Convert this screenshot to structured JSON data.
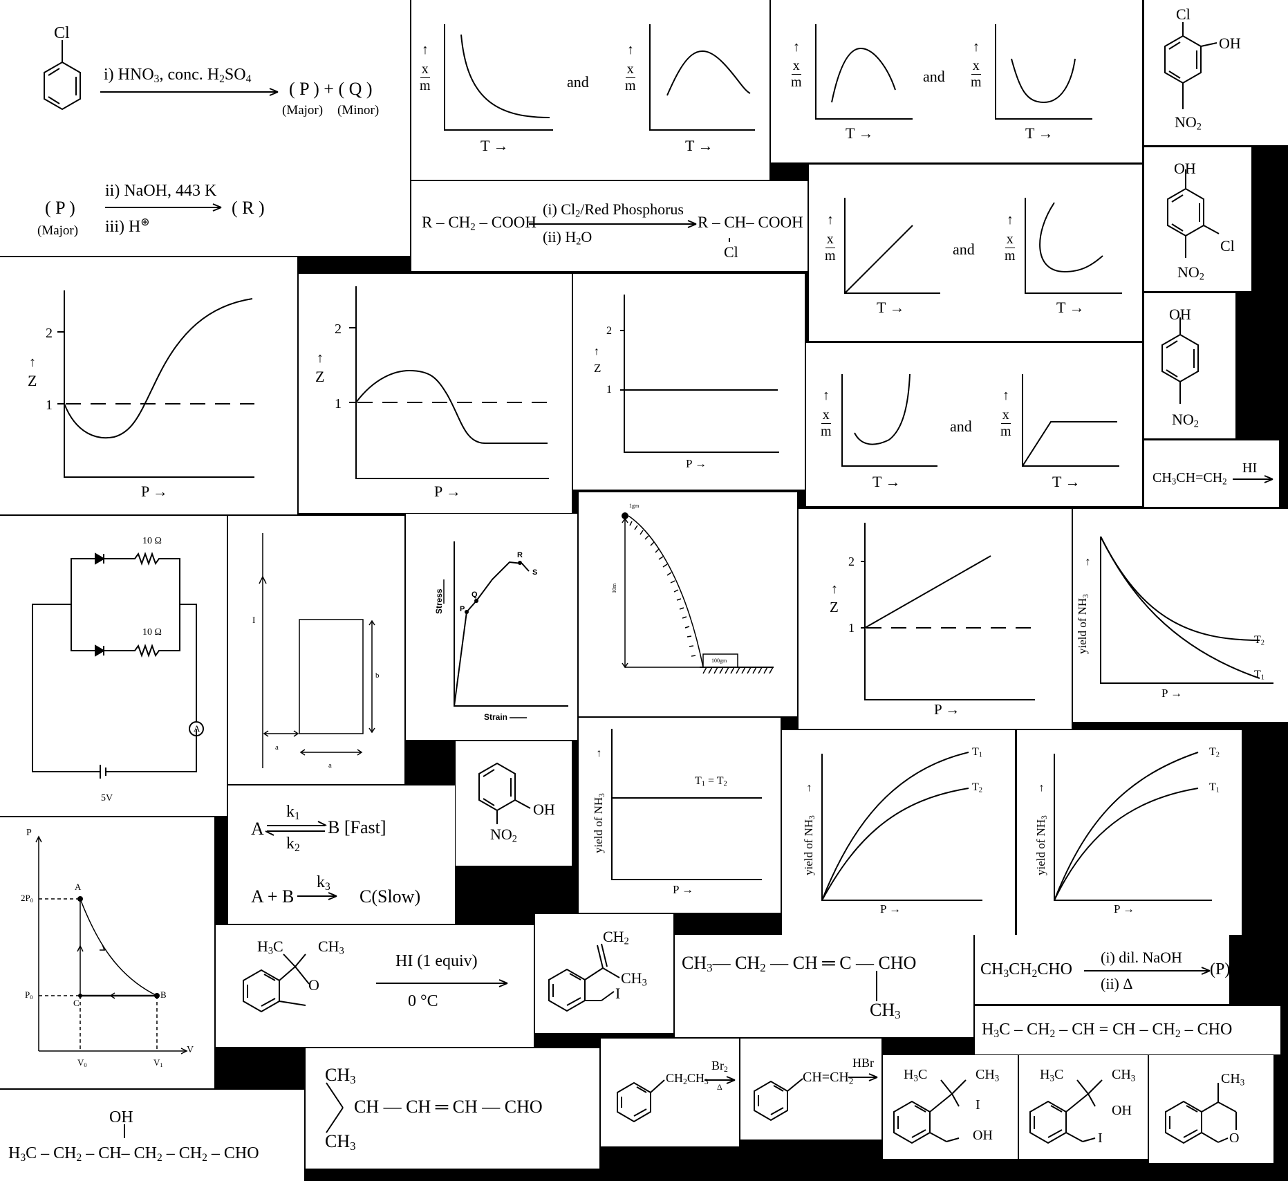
{
  "nitration": {
    "cl": "Cl",
    "reagent1": "i) HNO<sub>3</sub>, conc. H<sub>2</sub>SO<sub>4</sub>",
    "products": "( P ) + ( Q )",
    "major": "(Major)",
    "minor": "(Minor)",
    "p": "( P )",
    "p_major": "(Major)",
    "reagent2": "ii) NaOH, 443 K",
    "reagent3": "iii) H<sup>⊕</sup>",
    "r": "( R )"
  },
  "hvz": {
    "left": "R – CH<sub>2</sub> – COOH",
    "top": "(i) Cl<sub>2</sub>/Red Phosphorus",
    "bottom": "(ii) H<sub>2</sub>O",
    "right": "R – CH– COOH",
    "cl": "Cl"
  },
  "adsorption": {
    "y_top": "x",
    "y_bottom": "m",
    "x_label": "T →",
    "and": "and"
  },
  "z_plot": {
    "y_label": "Z",
    "x_label": "P →",
    "tick_two": "2",
    "tick_one": "1"
  },
  "phenols": {
    "cl": "Cl",
    "oh": "OH",
    "no2": "NO<sub>2</sub>"
  },
  "propene": {
    "text": "CH<sub>3</sub>CH=CH<sub>2</sub>",
    "reagent": "HI"
  },
  "circuit": {
    "r1": "10 Ω",
    "r2": "10 Ω",
    "ammeter": "A",
    "battery": "5V"
  },
  "loop": {
    "current": "I",
    "a_left": "a",
    "a_bottom": "a",
    "b_side": "b"
  },
  "stress": {
    "y": "Stress",
    "x": "Strain",
    "points": [
      "P",
      "Q",
      "R",
      "S"
    ]
  },
  "incline": {
    "mass_top": "1gm",
    "height": "10m",
    "mass_bottom": "100gm"
  },
  "nh3": {
    "ylabel": "yield of NH<sub>3</sub>",
    "xlabel": "P →",
    "t1": "T<sub>1</sub>",
    "t2": "T<sub>2</sub>",
    "equal": "T<sub>1</sub> = T<sub>2</sub>"
  },
  "nitrophenol": {
    "oh": "OH",
    "no2": "NO<sub>2</sub>"
  },
  "kinetics": {
    "a": "A",
    "k1": "k<sub>1</sub>",
    "k2": "k<sub>2</sub>",
    "b_fast": "B [Fast]",
    "line2_left": "A + B",
    "k3": "k<sub>3</sub>",
    "line2_right": "C(Slow)"
  },
  "pv": {
    "p_axis": "P",
    "v_axis": "V",
    "two_p0": "2P<sub>0</sub>",
    "p0": "P<sub>0</sub>",
    "v0": "V<sub>0</sub>",
    "v1": "V<sub>1</sub>",
    "a": "A",
    "b": "B",
    "c": "C"
  },
  "ether": {
    "h3c": "H<sub>3</sub>C",
    "ch3": "CH<sub>3</sub>",
    "o": "O",
    "reagent": "HI (1 equiv)",
    "temp": "0 °C"
  },
  "product1": {
    "ch2": "CH<sub>2</sub>",
    "ch3": "CH<sub>3</sub>",
    "i": "I"
  },
  "enal": {
    "chain": "CH<sub>3</sub>— CH<sub>2</sub> — CH ═ C — CHO",
    "ch3": "CH<sub>3</sub>"
  },
  "aldol": {
    "left": "CH<sub>3</sub>CH<sub>2</sub>CHO",
    "top": "(i) dil. NaOH",
    "bottom": "(ii) Δ",
    "right": "(P)"
  },
  "hexenal": {
    "text": "H<sub>3</sub>C – CH<sub>2</sub> – CH = CH – CH<sub>2</sub> – CHO"
  },
  "hydroxy": {
    "oh": "OH",
    "chain": "H<sub>3</sub>C – CH<sub>2</sub> – CH– CH<sub>2</sub> – CH<sub>2</sub> – CHO"
  },
  "isopropyl": {
    "ch3_top": "CH<sub>3</sub>",
    "chain": "CH — CH ═ CH — CHO",
    "ch3_bottom": "CH<sub>3</sub>"
  },
  "ethylbenzene": {
    "group": "CH<sub>2</sub>CH<sub>3</sub>",
    "reagent": "Br<sub>2</sub>",
    "cond": "Δ"
  },
  "styrene": {
    "group": "CH=CH<sub>2</sub>",
    "reagent": "HBr"
  },
  "product2": {
    "h3c": "H<sub>3</sub>C",
    "ch3": "CH<sub>3</sub>",
    "i": "I",
    "oh": "OH"
  },
  "product3": {
    "h3c": "H<sub>3</sub>C",
    "ch3": "CH<sub>3</sub>",
    "oh": "OH",
    "i": "I"
  },
  "product4": {
    "ch3": "CH<sub>3</sub>",
    "o": "O"
  }
}
